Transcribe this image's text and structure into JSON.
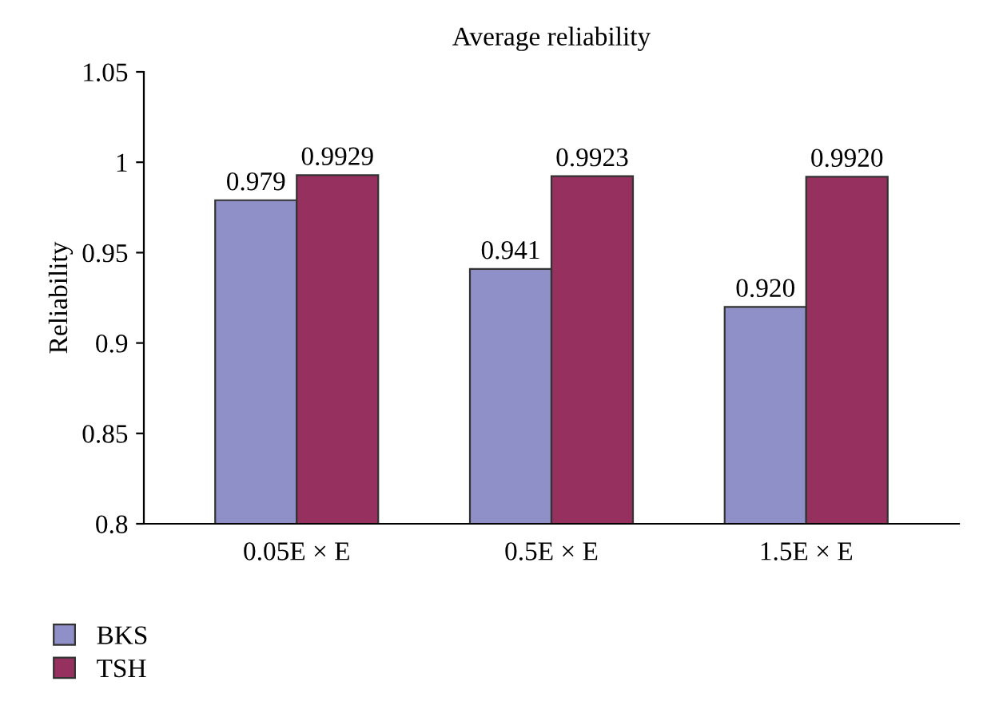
{
  "chart_data": {
    "type": "bar",
    "title": "Average reliability",
    "ylabel": "Reliability",
    "categories": [
      "0.05E × E",
      "0.5E × E",
      "1.5E × E"
    ],
    "series": [
      {
        "name": "BKS",
        "color": "#9090c8",
        "values": [
          0.979,
          0.941,
          0.92
        ],
        "value_labels": [
          "0.979",
          "0.941",
          "0.920"
        ]
      },
      {
        "name": "TSH",
        "color": "#96305e",
        "values": [
          0.9929,
          0.9923,
          0.992
        ],
        "value_labels": [
          "0.9929",
          "0.9923",
          "0.9920"
        ]
      }
    ],
    "ylim": [
      0.8,
      1.05
    ],
    "yticks": [
      0.8,
      0.85,
      0.9,
      0.95,
      1,
      1.05
    ],
    "grid": false,
    "legend": "bottom left"
  }
}
